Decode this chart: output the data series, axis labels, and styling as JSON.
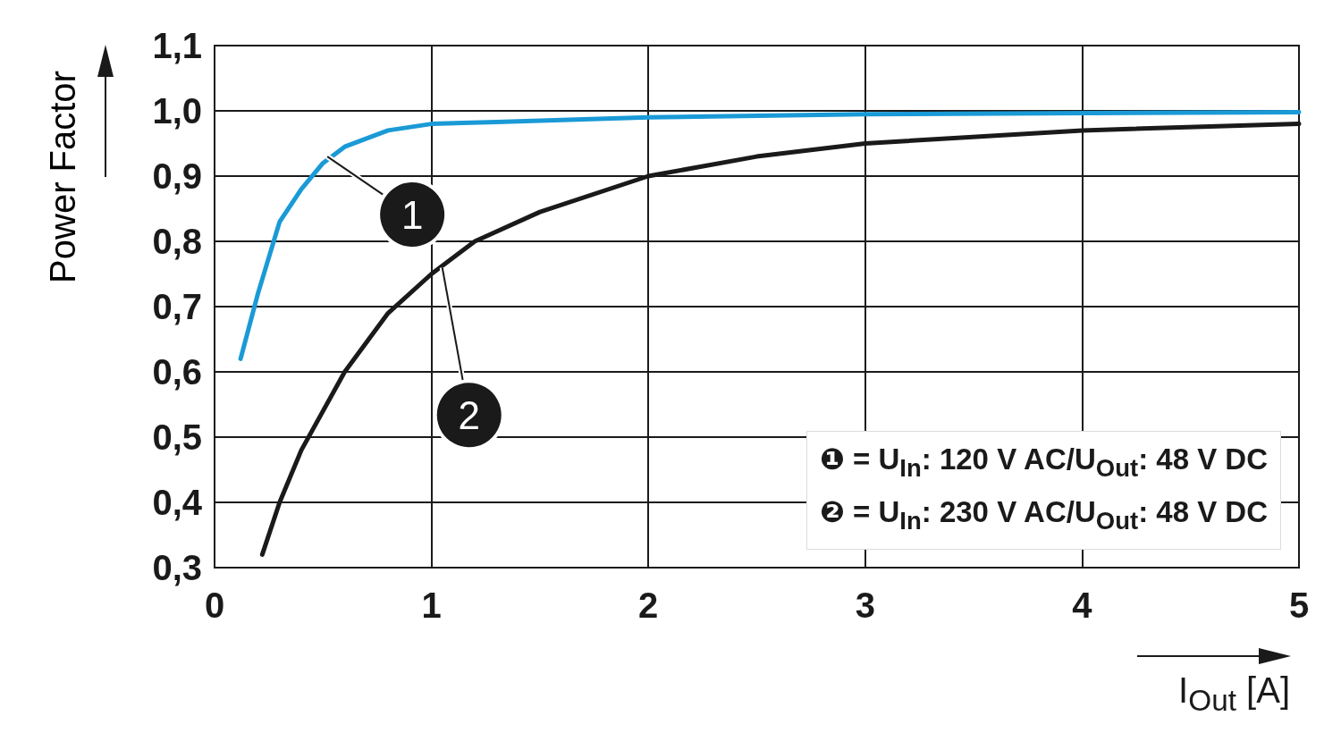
{
  "chart_data": {
    "type": "line",
    "xlabel": "I$_{Out}$ [A]",
    "ylabel": "Power Factor",
    "xlim": [
      0,
      5
    ],
    "xticks": [
      0,
      1,
      2,
      3,
      4,
      5
    ],
    "ylim": [
      0.3,
      1.1
    ],
    "yticks": [
      {
        "value": 0.3,
        "label": "0,3"
      },
      {
        "value": 0.4,
        "label": "0,4"
      },
      {
        "value": 0.5,
        "label": "0,5"
      },
      {
        "value": 0.6,
        "label": "0,6"
      },
      {
        "value": 0.7,
        "label": "0,7"
      },
      {
        "value": 0.8,
        "label": "0,8"
      },
      {
        "value": 0.9,
        "label": "0,9"
      },
      {
        "value": 1.0,
        "label": "1,0"
      },
      {
        "value": 1.1,
        "label": "1,1"
      }
    ],
    "grid": true,
    "line_style": "solid",
    "series": [
      {
        "color": "#1a9ad6",
        "x": [
          0.12,
          0.2,
          0.3,
          0.4,
          0.5,
          0.6,
          0.8,
          1.0,
          1.3,
          2.0,
          3.0,
          5.0
        ],
        "values": [
          0.62,
          0.72,
          0.83,
          0.88,
          0.92,
          0.945,
          0.97,
          0.98,
          0.983,
          0.99,
          0.995,
          0.998
        ]
      },
      {
        "color": "#1a1a1a",
        "x": [
          0.22,
          0.3,
          0.4,
          0.6,
          0.8,
          1.0,
          1.2,
          1.5,
          2.0,
          2.5,
          3.0,
          4.0,
          5.0
        ],
        "values": [
          0.32,
          0.4,
          0.48,
          0.6,
          0.69,
          0.75,
          0.8,
          0.845,
          0.9,
          0.93,
          0.95,
          0.97,
          0.98
        ]
      }
    ],
    "annotations": [
      {
        "text": "1",
        "x": 0.52,
        "y": 0.93
      },
      {
        "text": "2",
        "x": 1.05,
        "y": 0.76
      },
      "❶ = U$_{In}$: 120 V AC/U$_{Out}$: 48 V DC",
      "❷ = U$_{In}$: 230 V AC/U$_{Out}$: 48 V DC"
    ]
  }
}
